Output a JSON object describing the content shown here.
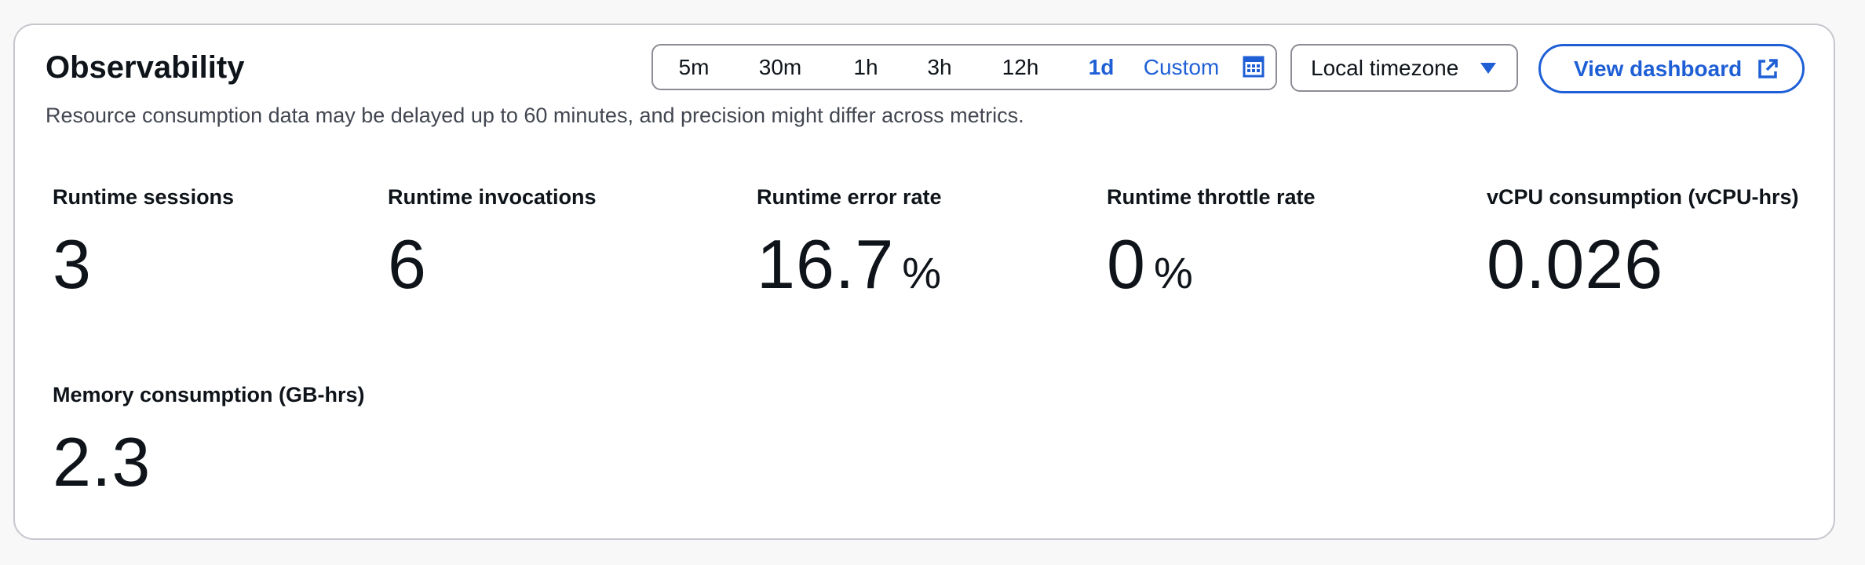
{
  "header": {
    "title": "Observability",
    "description": "Resource consumption data may be delayed up to 60 minutes, and precision might differ across metrics.",
    "time_ranges": [
      "5m",
      "30m",
      "1h",
      "3h",
      "12h",
      "1d",
      "Custom"
    ],
    "selected_range_index": 5,
    "timezone": "Local timezone",
    "dashboard_button": "View dashboard"
  },
  "metrics": [
    {
      "label": "Runtime sessions",
      "value": 3
    },
    {
      "label": "Runtime invocations",
      "value": 6
    },
    {
      "label": "Runtime error rate",
      "value": 16.7,
      "unit": "%"
    },
    {
      "label": "Runtime throttle rate",
      "value": 0,
      "unit": "%"
    },
    {
      "label": "vCPU consumption (vCPU-hrs)",
      "value": 0.026
    },
    {
      "label": "Memory consumption (GB-hrs)",
      "value": 2.3
    }
  ]
}
